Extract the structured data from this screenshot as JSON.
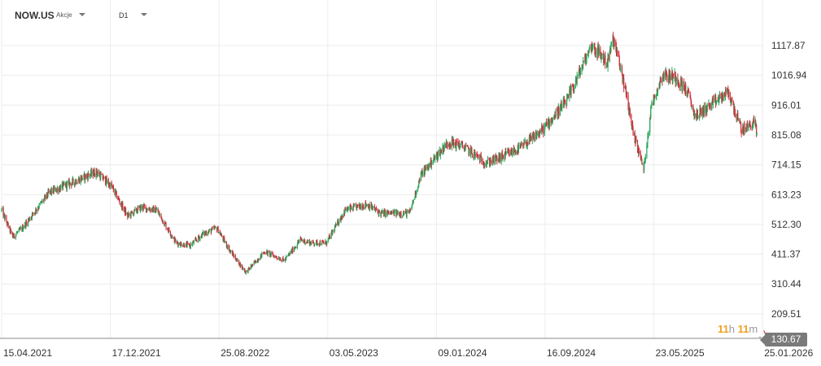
{
  "toolbar": {
    "symbol": "NOW.US",
    "symbol_type": "Akcje",
    "interval": "D1"
  },
  "countdown": {
    "hours": "11",
    "hours_unit": "h",
    "minutes": "11",
    "minutes_unit": "m"
  },
  "last_price_label": "130.67",
  "colors": {
    "up": "#26a65b",
    "down": "#d62839",
    "grid": "#ececec",
    "price_line": "#999999"
  },
  "chart_data": {
    "type": "candlestick",
    "y_ticks": [
      "1117.87",
      "1016.94",
      "916.01",
      "815.08",
      "714.15",
      "613.23",
      "512.30",
      "411.37",
      "310.44",
      "209.51"
    ],
    "x_ticks": [
      "15.04.2021",
      "17.12.2021",
      "25.08.2022",
      "03.05.2023",
      "09.01.2024",
      "16.09.2024",
      "23.05.2025",
      "25.01.2026"
    ],
    "ylim": [
      108,
      1190
    ],
    "last_price": 130.67,
    "path": [
      [
        "2021-04-15",
        560
      ],
      [
        "2021-05-10",
        470
      ],
      [
        "2021-06-01",
        500
      ],
      [
        "2021-07-01",
        560
      ],
      [
        "2021-08-01",
        620
      ],
      [
        "2021-09-15",
        650
      ],
      [
        "2021-11-15",
        690
      ],
      [
        "2021-12-20",
        640
      ],
      [
        "2022-01-25",
        540
      ],
      [
        "2022-02-25",
        570
      ],
      [
        "2022-04-01",
        560
      ],
      [
        "2022-05-15",
        450
      ],
      [
        "2022-06-15",
        440
      ],
      [
        "2022-07-15",
        480
      ],
      [
        "2022-08-15",
        500
      ],
      [
        "2022-09-15",
        420
      ],
      [
        "2022-10-20",
        350
      ],
      [
        "2022-12-01",
        420
      ],
      [
        "2023-01-15",
        390
      ],
      [
        "2023-02-20",
        460
      ],
      [
        "2023-03-15",
        450
      ],
      [
        "2023-04-20",
        450
      ],
      [
        "2023-06-01",
        560
      ],
      [
        "2023-07-20",
        580
      ],
      [
        "2023-08-20",
        550
      ],
      [
        "2023-10-25",
        550
      ],
      [
        "2023-11-20",
        680
      ],
      [
        "2024-01-20",
        790
      ],
      [
        "2024-02-20",
        780
      ],
      [
        "2024-04-15",
        720
      ],
      [
        "2024-05-20",
        740
      ],
      [
        "2024-07-01",
        770
      ],
      [
        "2024-08-20",
        830
      ],
      [
        "2024-10-15",
        930
      ],
      [
        "2024-11-20",
        1050
      ],
      [
        "2024-12-10",
        1120
      ],
      [
        "2025-01-15",
        1060
      ],
      [
        "2025-01-28",
        1140
      ],
      [
        "2025-02-20",
        1000
      ],
      [
        "2025-03-15",
        820
      ],
      [
        "2025-04-07",
        700
      ],
      [
        "2025-04-25",
        920
      ],
      [
        "2025-05-20",
        1020
      ],
      [
        "2025-06-20",
        1010
      ],
      [
        "2025-07-15",
        960
      ],
      [
        "2025-08-01",
        880
      ],
      [
        "2025-09-01",
        910
      ],
      [
        "2025-10-15",
        960
      ],
      [
        "2025-11-15",
        830
      ],
      [
        "2025-12-15",
        860
      ],
      [
        "2025-12-20",
        800
      ]
    ]
  }
}
